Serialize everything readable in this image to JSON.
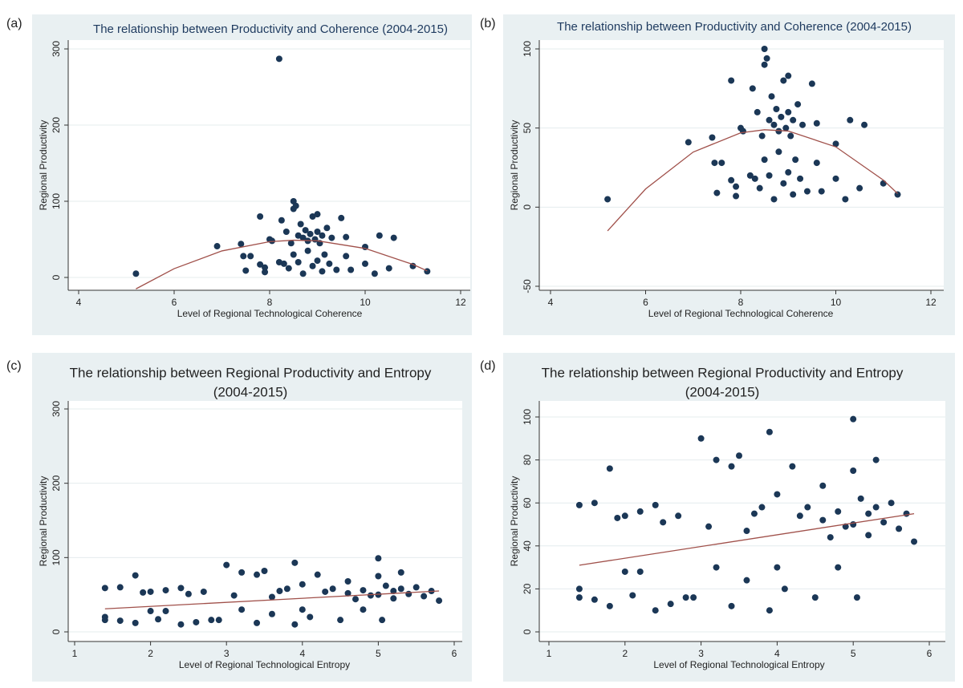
{
  "chart_data": [
    {
      "type": "scatter",
      "label": "(a)",
      "title": [
        "The relationship between Productivity and Coherence (2004-2015)"
      ],
      "x_label": "Level of Regional Technological Coherence",
      "y_label": "Regional Productivity",
      "xlim": [
        4,
        12
      ],
      "ylim": [
        0,
        300
      ],
      "xticks": [
        4,
        6,
        8,
        10,
        12
      ],
      "yticks": [
        0,
        100,
        200,
        300
      ],
      "grid": true,
      "series": [
        {
          "type": "scatter",
          "color": "#1b3756",
          "x": [
            5.2,
            6.9,
            7.4,
            7.45,
            7.6,
            7.5,
            7.8,
            7.8,
            7.9,
            7.9,
            8.0,
            8.05,
            8.2,
            8.25,
            8.3,
            8.35,
            8.4,
            8.45,
            8.5,
            8.5,
            8.55,
            8.5,
            8.6,
            8.6,
            8.65,
            8.7,
            8.7,
            8.75,
            8.8,
            8.8,
            8.85,
            8.9,
            8.9,
            8.95,
            9.0,
            9.0,
            9.0,
            9.05,
            9.1,
            9.1,
            9.15,
            9.2,
            9.25,
            9.3,
            9.4,
            9.5,
            9.6,
            9.6,
            9.7,
            10.0,
            10.0,
            10.2,
            10.3,
            10.5,
            10.6,
            11.0,
            11.3,
            8.2
          ],
          "values": [
            5,
            41,
            44,
            28,
            28,
            9,
            80,
            17,
            13,
            7,
            50,
            48,
            20,
            75,
            18,
            60,
            12,
            45,
            90,
            100,
            94,
            30,
            55,
            20,
            70,
            52,
            5,
            62,
            48,
            35,
            57,
            80,
            15,
            50,
            83,
            60,
            22,
            45,
            55,
            8,
            30,
            65,
            18,
            52,
            10,
            78,
            53,
            28,
            10,
            18,
            40,
            5,
            55,
            12,
            52,
            15,
            8,
            287
          ]
        },
        {
          "type": "line",
          "color": "#a0504a",
          "x": [
            5.2,
            6,
            7,
            8,
            8.5,
            9,
            10,
            11,
            11.3
          ],
          "values": [
            -15,
            11.5,
            34.8,
            47,
            48.9,
            48.1,
            38.1,
            17.1,
            8.6
          ]
        }
      ]
    },
    {
      "type": "scatter",
      "label": "(b)",
      "title": [
        "The relationship between Productivity and Coherence (2004-2015)"
      ],
      "x_label": "Level of Regional Technological Coherence",
      "y_label": "Regional Productivity",
      "xlim": [
        4,
        12
      ],
      "ylim": [
        -50,
        100
      ],
      "xticks": [
        4,
        6,
        8,
        10,
        12
      ],
      "yticks": [
        -50,
        0,
        50,
        100
      ],
      "grid": true,
      "series": [
        {
          "type": "scatter",
          "color": "#1b3756",
          "x": [
            5.2,
            6.9,
            7.4,
            7.45,
            7.6,
            7.5,
            7.8,
            7.8,
            7.9,
            7.9,
            8.0,
            8.05,
            8.2,
            8.25,
            8.3,
            8.35,
            8.4,
            8.45,
            8.5,
            8.5,
            8.55,
            8.5,
            8.6,
            8.6,
            8.65,
            8.7,
            8.7,
            8.75,
            8.8,
            8.8,
            8.85,
            8.9,
            8.9,
            8.95,
            9.0,
            9.0,
            9.0,
            9.05,
            9.1,
            9.1,
            9.15,
            9.2,
            9.25,
            9.3,
            9.4,
            9.5,
            9.6,
            9.6,
            9.7,
            10.0,
            10.0,
            10.2,
            10.3,
            10.5,
            10.6,
            11.0,
            11.3
          ],
          "values": [
            5,
            41,
            44,
            28,
            28,
            9,
            80,
            17,
            13,
            7,
            50,
            48,
            20,
            75,
            18,
            60,
            12,
            45,
            90,
            100,
            94,
            30,
            55,
            20,
            70,
            52,
            5,
            62,
            48,
            35,
            57,
            80,
            15,
            50,
            83,
            60,
            22,
            45,
            55,
            8,
            30,
            65,
            18,
            52,
            10,
            78,
            53,
            28,
            10,
            18,
            40,
            5,
            55,
            12,
            52,
            15,
            8
          ]
        },
        {
          "type": "line",
          "color": "#a0504a",
          "x": [
            5.2,
            6,
            7,
            8,
            8.5,
            9,
            10,
            11,
            11.3
          ],
          "values": [
            -15,
            11.5,
            34.8,
            47,
            48.9,
            48.1,
            38.1,
            17.1,
            8.6
          ]
        }
      ]
    },
    {
      "type": "scatter",
      "label": "(c)",
      "title": [
        "The relationship between Regional Productivity and Entropy",
        "(2004-2015)"
      ],
      "x_label": "Level of Regional Technological Entropy",
      "y_label": "Regional Productivity",
      "xlim": [
        1,
        6
      ],
      "ylim": [
        0,
        300
      ],
      "xticks": [
        1,
        2,
        3,
        4,
        5,
        6
      ],
      "yticks": [
        0,
        100,
        200,
        300
      ],
      "grid": true,
      "series": [
        {
          "type": "scatter",
          "color": "#1b3756",
          "x": [
            1.4,
            1.4,
            1.4,
            1.6,
            1.6,
            1.8,
            1.8,
            1.9,
            2.0,
            2.0,
            2.1,
            2.2,
            2.2,
            2.4,
            2.4,
            2.5,
            2.6,
            2.7,
            2.8,
            2.9,
            3.0,
            3.1,
            3.2,
            3.2,
            3.4,
            3.4,
            3.5,
            3.6,
            3.6,
            3.7,
            3.8,
            3.9,
            3.9,
            4.0,
            4.0,
            4.1,
            4.2,
            4.3,
            4.4,
            4.5,
            4.6,
            4.6,
            4.7,
            4.8,
            4.8,
            4.9,
            5.0,
            5.0,
            5.0,
            5.05,
            5.1,
            5.2,
            5.2,
            5.3,
            5.3,
            5.4,
            5.5,
            5.6,
            5.7,
            5.8
          ],
          "values": [
            59,
            20,
            16,
            60,
            15,
            76,
            12,
            53,
            28,
            54,
            17,
            56,
            28,
            10,
            59,
            51,
            13,
            54,
            16,
            16,
            90,
            49,
            80,
            30,
            77,
            12,
            82,
            47,
            24,
            55,
            58,
            93,
            10,
            64,
            30,
            20,
            77,
            54,
            58,
            16,
            68,
            52,
            44,
            30,
            56,
            49,
            99,
            75,
            50,
            16,
            62,
            55,
            45,
            80,
            58,
            51,
            60,
            48,
            55,
            42
          ]
        },
        {
          "type": "line",
          "color": "#a0504a",
          "x": [
            1.4,
            5.8
          ],
          "values": [
            31,
            55
          ]
        }
      ]
    },
    {
      "type": "scatter",
      "label": "(d)",
      "title": [
        "The relationship between Regional Productivity and Entropy",
        "(2004-2015)"
      ],
      "x_label": "Level of Regional Technological Entropy",
      "y_label": "Regional Productivity",
      "xlim": [
        1,
        6
      ],
      "ylim": [
        0,
        100
      ],
      "xticks": [
        1,
        2,
        3,
        4,
        5,
        6
      ],
      "yticks": [
        0,
        20,
        40,
        60,
        80,
        100
      ],
      "grid": true,
      "series": [
        {
          "type": "scatter",
          "color": "#1b3756",
          "x": [
            1.4,
            1.4,
            1.4,
            1.6,
            1.6,
            1.8,
            1.8,
            1.9,
            2.0,
            2.0,
            2.1,
            2.2,
            2.2,
            2.4,
            2.4,
            2.5,
            2.6,
            2.7,
            2.8,
            2.9,
            3.0,
            3.1,
            3.2,
            3.2,
            3.4,
            3.4,
            3.5,
            3.6,
            3.6,
            3.7,
            3.8,
            3.9,
            3.9,
            4.0,
            4.0,
            4.1,
            4.2,
            4.3,
            4.4,
            4.5,
            4.6,
            4.6,
            4.7,
            4.8,
            4.8,
            4.9,
            5.0,
            5.0,
            5.0,
            5.05,
            5.1,
            5.2,
            5.2,
            5.3,
            5.3,
            5.4,
            5.5,
            5.6,
            5.7,
            5.8
          ],
          "values": [
            59,
            20,
            16,
            60,
            15,
            76,
            12,
            53,
            28,
            54,
            17,
            56,
            28,
            10,
            59,
            51,
            13,
            54,
            16,
            16,
            90,
            49,
            80,
            30,
            77,
            12,
            82,
            47,
            24,
            55,
            58,
            93,
            10,
            64,
            30,
            20,
            77,
            54,
            58,
            16,
            68,
            52,
            44,
            30,
            56,
            49,
            99,
            75,
            50,
            16,
            62,
            55,
            45,
            80,
            58,
            51,
            60,
            48,
            55,
            42
          ]
        },
        {
          "type": "line",
          "color": "#a0504a",
          "x": [
            1.4,
            5.8
          ],
          "values": [
            31,
            55
          ]
        }
      ]
    }
  ]
}
